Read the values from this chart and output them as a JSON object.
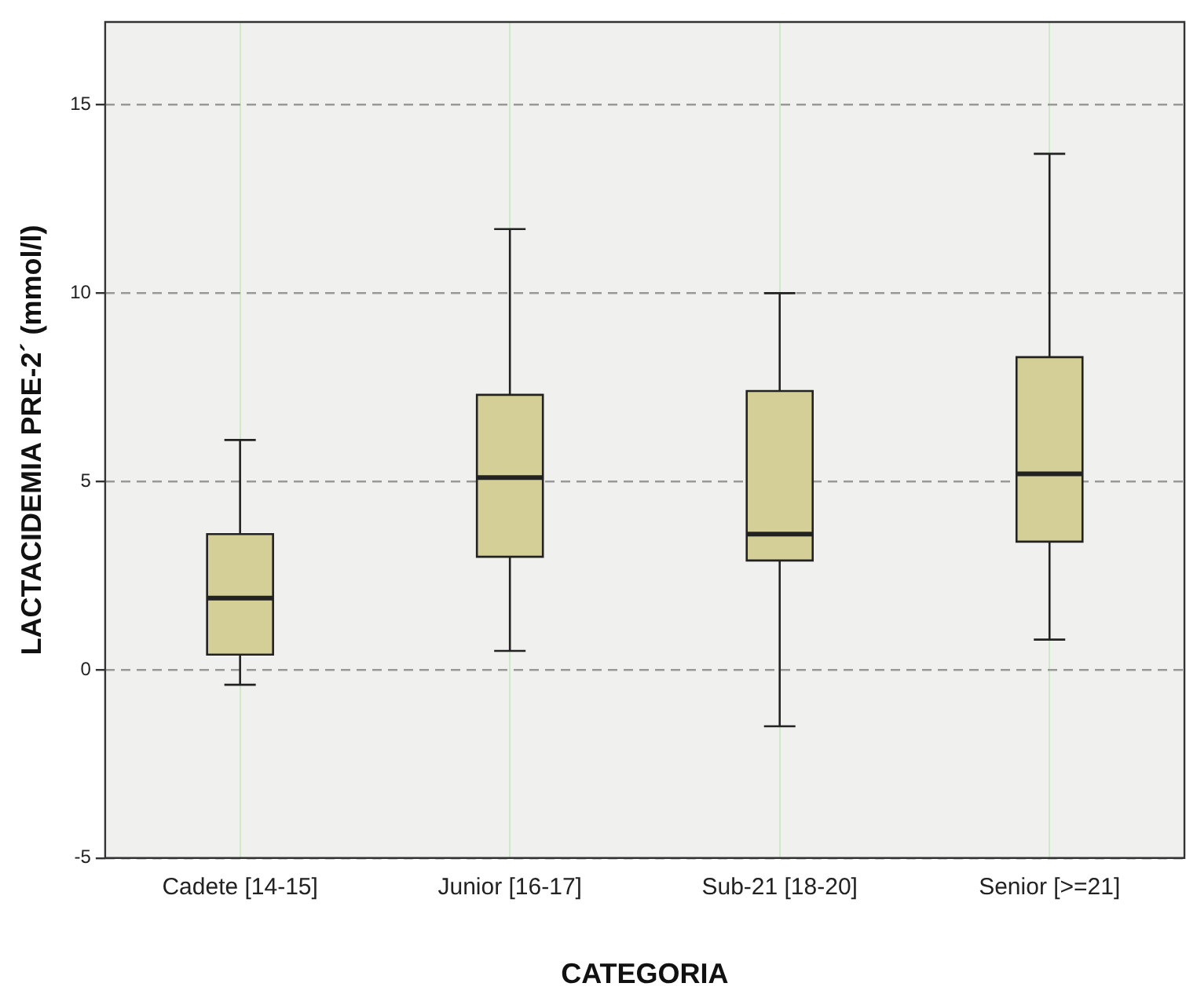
{
  "chart_data": {
    "type": "box",
    "xlabel": "CATEGORIA",
    "ylabel": "LACTACIDEMIA PRE-2´ (mmol/l)",
    "categories": [
      "Cadete [14-15]",
      "Junior [16-17]",
      "Sub-21 [18-20]",
      "Senior [>=21]"
    ],
    "boxes": [
      {
        "low": -0.4,
        "q1": 0.4,
        "median": 1.9,
        "q3": 3.6,
        "high": 6.1
      },
      {
        "low": 0.5,
        "q1": 3.0,
        "median": 5.1,
        "q3": 7.3,
        "high": 11.7
      },
      {
        "low": -1.5,
        "q1": 2.9,
        "median": 3.6,
        "q3": 7.4,
        "high": 10.0
      },
      {
        "low": 0.8,
        "q1": 3.4,
        "median": 5.2,
        "q3": 8.3,
        "high": 13.7
      }
    ],
    "color": "#d4cf96",
    "ylim": [
      -5,
      17.2
    ],
    "yticks": [
      -5,
      0,
      5,
      10,
      15
    ],
    "grid": true
  }
}
